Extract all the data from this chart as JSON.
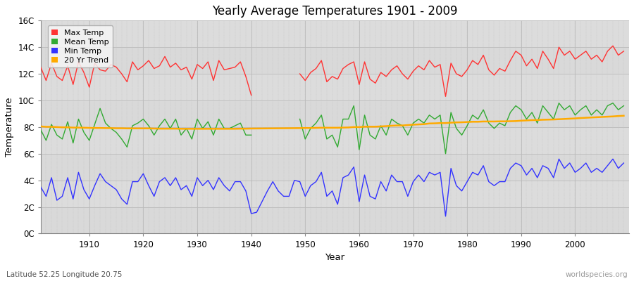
{
  "title": "Yearly Average Temperatures 1901 - 2009",
  "xlabel": "Year",
  "ylabel": "Temperature",
  "subtitle_lat": "Latitude 52.25 Longitude 20.75",
  "watermark": "worldspecies.org",
  "years": [
    1901,
    1902,
    1903,
    1904,
    1905,
    1906,
    1907,
    1908,
    1909,
    1910,
    1911,
    1912,
    1913,
    1914,
    1915,
    1916,
    1917,
    1918,
    1919,
    1920,
    1921,
    1922,
    1923,
    1924,
    1925,
    1926,
    1927,
    1928,
    1929,
    1930,
    1931,
    1932,
    1933,
    1934,
    1935,
    1936,
    1937,
    1938,
    1939,
    1940,
    1941,
    1942,
    1943,
    1944,
    1945,
    1946,
    1947,
    1948,
    1949,
    1950,
    1951,
    1952,
    1953,
    1954,
    1955,
    1956,
    1957,
    1958,
    1959,
    1960,
    1961,
    1962,
    1963,
    1964,
    1965,
    1966,
    1967,
    1968,
    1969,
    1970,
    1971,
    1972,
    1973,
    1974,
    1975,
    1976,
    1977,
    1978,
    1979,
    1980,
    1981,
    1982,
    1983,
    1984,
    1985,
    1986,
    1987,
    1988,
    1989,
    1990,
    1991,
    1992,
    1993,
    1994,
    1995,
    1996,
    1997,
    1998,
    1999,
    2000,
    2001,
    2002,
    2003,
    2004,
    2005,
    2006,
    2007,
    2008,
    2009
  ],
  "max_temp": [
    12.5,
    11.5,
    12.8,
    11.8,
    11.5,
    12.6,
    11.2,
    12.9,
    12.1,
    11.0,
    12.8,
    12.3,
    12.2,
    12.7,
    12.5,
    12.0,
    11.4,
    12.9,
    12.3,
    12.6,
    13.0,
    12.4,
    12.6,
    13.3,
    12.5,
    12.8,
    12.3,
    12.5,
    11.6,
    12.7,
    12.4,
    12.9,
    11.5,
    13.0,
    12.3,
    12.4,
    12.5,
    12.9,
    11.8,
    10.4,
    null,
    null,
    null,
    null,
    null,
    null,
    null,
    null,
    12.0,
    11.5,
    12.1,
    12.4,
    13.0,
    11.4,
    11.8,
    11.6,
    12.4,
    12.7,
    12.9,
    11.2,
    12.9,
    11.6,
    11.3,
    12.1,
    11.8,
    12.3,
    12.6,
    12.0,
    11.6,
    12.2,
    12.6,
    12.3,
    13.0,
    12.5,
    12.7,
    10.3,
    12.8,
    12.0,
    11.8,
    12.3,
    13.0,
    12.7,
    13.4,
    12.3,
    11.9,
    12.4,
    12.2,
    13.0,
    13.7,
    13.4,
    12.6,
    13.1,
    12.4,
    13.7,
    13.1,
    12.4,
    14.0,
    13.4,
    13.7,
    13.1,
    13.4,
    13.7,
    13.1,
    13.4,
    12.9,
    13.7,
    14.1,
    13.4,
    13.7
  ],
  "mean_temp": [
    7.8,
    7.0,
    8.2,
    7.4,
    7.1,
    8.4,
    6.8,
    8.6,
    7.6,
    7.0,
    8.2,
    9.4,
    8.3,
    7.9,
    7.6,
    7.1,
    6.5,
    8.1,
    8.3,
    8.6,
    8.1,
    7.4,
    8.1,
    8.6,
    7.9,
    8.6,
    7.4,
    7.9,
    7.1,
    8.6,
    7.9,
    8.4,
    7.4,
    8.6,
    7.9,
    7.9,
    8.1,
    8.3,
    7.4,
    7.4,
    null,
    null,
    null,
    null,
    null,
    null,
    null,
    null,
    8.6,
    7.1,
    7.9,
    8.3,
    8.9,
    7.1,
    7.4,
    6.5,
    8.6,
    8.6,
    9.6,
    6.3,
    8.9,
    7.4,
    7.1,
    8.1,
    7.4,
    8.6,
    8.3,
    8.1,
    7.4,
    8.3,
    8.6,
    8.3,
    8.9,
    8.6,
    8.9,
    6.0,
    9.1,
    7.9,
    7.4,
    8.1,
    8.9,
    8.6,
    9.3,
    8.3,
    7.9,
    8.3,
    8.1,
    9.1,
    9.6,
    9.3,
    8.6,
    9.1,
    8.3,
    9.6,
    9.1,
    8.6,
    9.8,
    9.3,
    9.6,
    8.9,
    9.3,
    9.6,
    8.9,
    9.3,
    8.9,
    9.6,
    9.8,
    9.3,
    9.6
  ],
  "min_temp": [
    3.5,
    2.8,
    4.2,
    2.5,
    2.8,
    4.2,
    2.6,
    4.6,
    3.3,
    2.6,
    3.6,
    4.5,
    3.9,
    3.6,
    3.3,
    2.6,
    2.2,
    3.9,
    3.9,
    4.5,
    3.6,
    2.8,
    3.9,
    4.2,
    3.6,
    4.2,
    3.3,
    3.6,
    2.8,
    4.2,
    3.6,
    4.0,
    3.3,
    4.2,
    3.6,
    3.2,
    3.9,
    3.9,
    3.2,
    1.5,
    1.6,
    2.4,
    3.2,
    3.9,
    3.2,
    2.8,
    2.8,
    4.0,
    3.9,
    2.8,
    3.6,
    3.9,
    4.6,
    2.8,
    3.2,
    2.2,
    4.2,
    4.4,
    5.0,
    2.4,
    4.4,
    2.8,
    2.6,
    3.9,
    3.2,
    4.4,
    3.9,
    3.9,
    2.8,
    3.9,
    4.4,
    3.9,
    4.6,
    4.4,
    4.6,
    1.3,
    4.9,
    3.6,
    3.2,
    3.9,
    4.6,
    4.4,
    5.1,
    3.9,
    3.6,
    3.9,
    3.9,
    4.9,
    5.3,
    5.1,
    4.4,
    4.9,
    4.2,
    5.1,
    4.9,
    4.2,
    5.6,
    4.9,
    5.3,
    4.6,
    4.9,
    5.3,
    4.6,
    4.9,
    4.6,
    5.1,
    5.6,
    4.9,
    5.3
  ],
  "trend_years": [
    1901,
    1902,
    1903,
    1904,
    1905,
    1906,
    1907,
    1908,
    1909,
    1910,
    1911,
    1912,
    1913,
    1914,
    1915,
    1916,
    1917,
    1918,
    1919,
    1920,
    1921,
    1922,
    1923,
    1924,
    1925,
    1926,
    1927,
    1928,
    1929,
    1930,
    1931,
    1932,
    1933,
    1934,
    1935,
    1936,
    1937,
    1938,
    1939,
    1940,
    1949,
    1950,
    1951,
    1952,
    1953,
    1954,
    1955,
    1956,
    1957,
    1958,
    1959,
    1960,
    1961,
    1962,
    1963,
    1964,
    1965,
    1966,
    1967,
    1968,
    1969,
    1970,
    1971,
    1972,
    1973,
    1974,
    1975,
    1976,
    1977,
    1978,
    1979,
    1980,
    1981,
    1982,
    1983,
    1984,
    1985,
    1986,
    1987,
    1988,
    1989,
    1990,
    1991,
    1992,
    1993,
    1994,
    1995,
    1996,
    1997,
    1998,
    1999,
    2000,
    2001,
    2002,
    2003,
    2004,
    2005,
    2006,
    2007,
    2008,
    2009
  ],
  "trend_values": [
    8.05,
    8.02,
    8.02,
    8.0,
    7.98,
    7.98,
    7.96,
    7.96,
    7.95,
    7.94,
    7.93,
    7.93,
    7.92,
    7.92,
    7.91,
    7.91,
    7.9,
    7.9,
    7.9,
    7.9,
    7.9,
    7.89,
    7.88,
    7.88,
    7.88,
    7.88,
    7.87,
    7.87,
    7.87,
    7.87,
    7.87,
    7.87,
    7.87,
    7.87,
    7.87,
    7.87,
    7.87,
    7.88,
    7.88,
    7.89,
    7.92,
    7.93,
    7.93,
    7.94,
    7.95,
    7.95,
    7.95,
    7.95,
    7.96,
    7.97,
    8.0,
    8.0,
    8.03,
    8.03,
    8.03,
    8.05,
    8.07,
    8.1,
    8.12,
    8.12,
    8.15,
    8.18,
    8.2,
    8.22,
    8.27,
    8.28,
    8.3,
    8.3,
    8.33,
    8.35,
    8.36,
    8.38,
    8.4,
    8.4,
    8.42,
    8.42,
    8.42,
    8.43,
    8.43,
    8.44,
    8.45,
    8.48,
    8.5,
    8.52,
    8.53,
    8.55,
    8.56,
    8.57,
    8.59,
    8.61,
    8.63,
    8.65,
    8.68,
    8.7,
    8.72,
    8.74,
    8.76,
    8.78,
    8.8,
    8.83,
    8.85
  ],
  "colors": {
    "max_temp": "#ff3333",
    "mean_temp": "#33aa33",
    "min_temp": "#3333ff",
    "trend": "#ffaa00",
    "plot_bg": "#dcdcdc",
    "grid_major": "#bbbbbb",
    "grid_minor": "#cccccc"
  },
  "ylim": [
    0,
    16
  ],
  "yticks": [
    0,
    2,
    4,
    6,
    8,
    10,
    12,
    14,
    16
  ],
  "ytick_labels": [
    "0C",
    "2C",
    "4C",
    "6C",
    "8C",
    "10C",
    "12C",
    "14C",
    "16C"
  ],
  "xlim": [
    1901,
    2010
  ],
  "xticks": [
    1910,
    1920,
    1930,
    1940,
    1950,
    1960,
    1970,
    1980,
    1990,
    2000
  ],
  "legend": {
    "max_temp": "Max Temp",
    "mean_temp": "Mean Temp",
    "min_temp": "Min Temp",
    "trend": "20 Yr Trend"
  }
}
